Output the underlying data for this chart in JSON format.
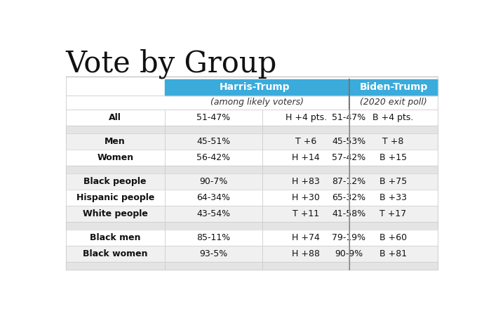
{
  "title": "Vote by Group",
  "header1": "Harris-Trump",
  "header2": "Biden-Trump",
  "subheader1": "(among likely voters)",
  "subheader2": "(2020 exit poll)",
  "header_color": "#3aabdb",
  "header_text_color": "#ffffff",
  "rows": [
    {
      "group": "All",
      "ht_pct": "51-47%",
      "ht_adv": "H +4 pts.",
      "bt_pct": "51-47%",
      "bt_adv": "B +4 pts.",
      "spacer": false
    },
    {
      "group": "",
      "ht_pct": "",
      "ht_adv": "",
      "bt_pct": "",
      "bt_adv": "",
      "spacer": true
    },
    {
      "group": "Men",
      "ht_pct": "45-51%",
      "ht_adv": "T +6",
      "bt_pct": "45-53%",
      "bt_adv": "T +8",
      "spacer": false
    },
    {
      "group": "Women",
      "ht_pct": "56-42%",
      "ht_adv": "H +14",
      "bt_pct": "57-42%",
      "bt_adv": "B +15",
      "spacer": false
    },
    {
      "group": "",
      "ht_pct": "",
      "ht_adv": "",
      "bt_pct": "",
      "bt_adv": "",
      "spacer": true
    },
    {
      "group": "Black people",
      "ht_pct": "90-7%",
      "ht_adv": "H +83",
      "bt_pct": "87-12%",
      "bt_adv": "B +75",
      "spacer": false
    },
    {
      "group": "Hispanic people",
      "ht_pct": "64-34%",
      "ht_adv": "H +30",
      "bt_pct": "65-32%",
      "bt_adv": "B +33",
      "spacer": false
    },
    {
      "group": "White people",
      "ht_pct": "43-54%",
      "ht_adv": "T +11",
      "bt_pct": "41-58%",
      "bt_adv": "T +17",
      "spacer": false
    },
    {
      "group": "",
      "ht_pct": "",
      "ht_adv": "",
      "bt_pct": "",
      "bt_adv": "",
      "spacer": true
    },
    {
      "group": "Black men",
      "ht_pct": "85-11%",
      "ht_adv": "H +74",
      "bt_pct": "79-19%",
      "bt_adv": "B +60",
      "spacer": false
    },
    {
      "group": "Black women",
      "ht_pct": "93-5%",
      "ht_adv": "H +88",
      "bt_pct": "90-9%",
      "bt_adv": "B +81",
      "spacer": false
    },
    {
      "group": "",
      "ht_pct": "",
      "ht_adv": "",
      "bt_pct": "",
      "bt_adv": "",
      "spacer": true
    }
  ],
  "bg_white": "#ffffff",
  "bg_light": "#f0f0f0",
  "bg_spacer": "#e4e4e4",
  "border_color": "#cccccc",
  "mid_divider_color": "#777777",
  "title_fontsize": 30,
  "header_fontsize": 10,
  "cell_fontsize": 9
}
